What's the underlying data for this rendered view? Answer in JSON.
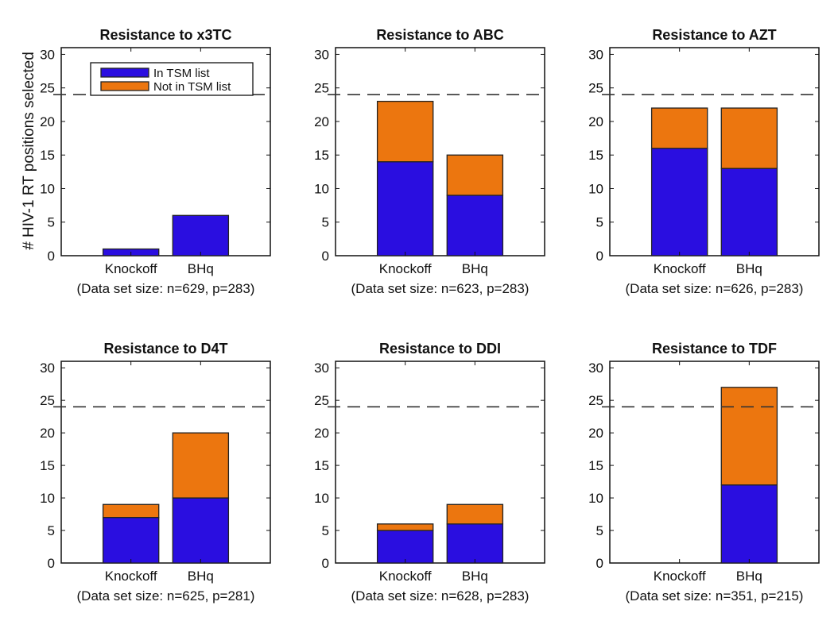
{
  "ylabel": "# HIV-1 RT positions selected",
  "colors": {
    "in_tsm": "#2a0ee0",
    "not_in_tsm": "#ec760f",
    "reference_line": "#333333"
  },
  "legend": {
    "items": [
      "In TSM list",
      "Not in TSM list"
    ],
    "placement": "top-right inside first panel"
  },
  "chart_data": [
    {
      "type": "bar",
      "stacked": true,
      "title": "Resistance to x3TC",
      "categories": [
        "Knockoff",
        "BHq"
      ],
      "footnote": "(Data set size: n=629, p=283)",
      "ylim": [
        0,
        31
      ],
      "yticks": [
        0,
        5,
        10,
        15,
        20,
        25,
        30
      ],
      "reference_line": 24,
      "series": [
        {
          "name": "In TSM list",
          "values": [
            1,
            6
          ]
        },
        {
          "name": "Not in TSM list",
          "values": [
            0,
            0
          ]
        }
      ]
    },
    {
      "type": "bar",
      "stacked": true,
      "title": "Resistance to ABC",
      "categories": [
        "Knockoff",
        "BHq"
      ],
      "footnote": "(Data set size: n=623, p=283)",
      "ylim": [
        0,
        31
      ],
      "yticks": [
        0,
        5,
        10,
        15,
        20,
        25,
        30
      ],
      "reference_line": 24,
      "series": [
        {
          "name": "In TSM list",
          "values": [
            14,
            9
          ]
        },
        {
          "name": "Not in TSM list",
          "values": [
            9,
            6
          ]
        }
      ]
    },
    {
      "type": "bar",
      "stacked": true,
      "title": "Resistance to AZT",
      "categories": [
        "Knockoff",
        "BHq"
      ],
      "footnote": "(Data set size: n=626, p=283)",
      "ylim": [
        0,
        31
      ],
      "yticks": [
        0,
        5,
        10,
        15,
        20,
        25,
        30
      ],
      "reference_line": 24,
      "series": [
        {
          "name": "In TSM list",
          "values": [
            16,
            13
          ]
        },
        {
          "name": "Not in TSM list",
          "values": [
            6,
            9
          ]
        }
      ]
    },
    {
      "type": "bar",
      "stacked": true,
      "title": "Resistance to D4T",
      "categories": [
        "Knockoff",
        "BHq"
      ],
      "footnote": "(Data set size: n=625, p=281)",
      "ylim": [
        0,
        31
      ],
      "yticks": [
        0,
        5,
        10,
        15,
        20,
        25,
        30
      ],
      "reference_line": 24,
      "series": [
        {
          "name": "In TSM list",
          "values": [
            7,
            10
          ]
        },
        {
          "name": "Not in TSM list",
          "values": [
            2,
            10
          ]
        }
      ]
    },
    {
      "type": "bar",
      "stacked": true,
      "title": "Resistance to DDI",
      "categories": [
        "Knockoff",
        "BHq"
      ],
      "footnote": "(Data set size: n=628, p=283)",
      "ylim": [
        0,
        31
      ],
      "yticks": [
        0,
        5,
        10,
        15,
        20,
        25,
        30
      ],
      "reference_line": 24,
      "series": [
        {
          "name": "In TSM list",
          "values": [
            5,
            6
          ]
        },
        {
          "name": "Not in TSM list",
          "values": [
            1,
            3
          ]
        }
      ]
    },
    {
      "type": "bar",
      "stacked": true,
      "title": "Resistance to TDF",
      "categories": [
        "Knockoff",
        "BHq"
      ],
      "footnote": "(Data set size: n=351, p=215)",
      "ylim": [
        0,
        31
      ],
      "yticks": [
        0,
        5,
        10,
        15,
        20,
        25,
        30
      ],
      "reference_line": 24,
      "series": [
        {
          "name": "In TSM list",
          "values": [
            0,
            12
          ]
        },
        {
          "name": "Not in TSM list",
          "values": [
            0,
            15
          ]
        }
      ]
    }
  ]
}
